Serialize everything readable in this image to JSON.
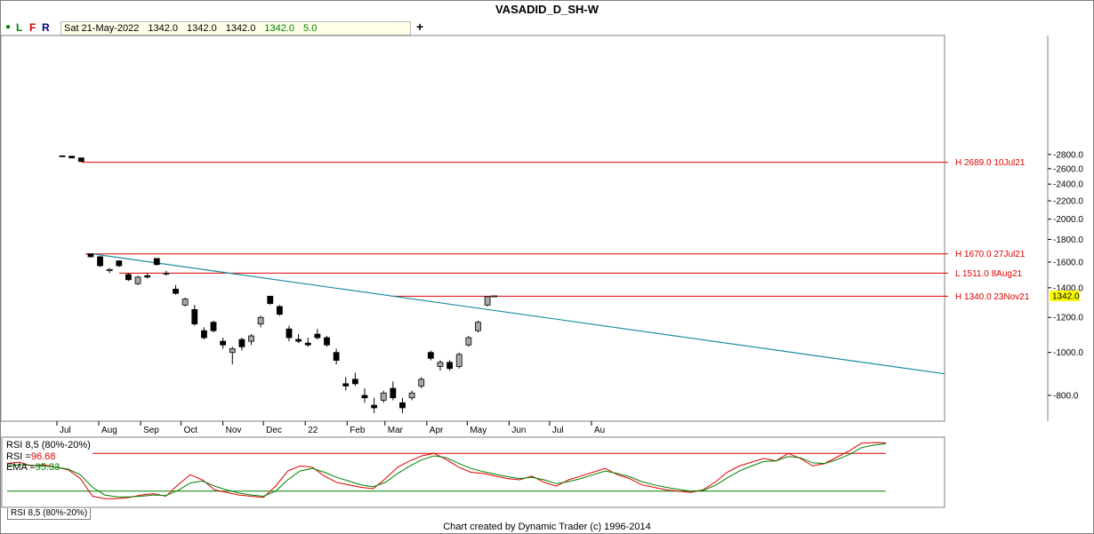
{
  "window": {
    "title": "VASADID_D_SH-W"
  },
  "toolbar": {
    "dot_color": "#008000",
    "letters": [
      {
        "label": "L",
        "color": "#008000"
      },
      {
        "label": "F",
        "color": "#cc0000"
      },
      {
        "label": "R",
        "color": "#000080"
      }
    ],
    "date": "Sat 21-May-2022",
    "open": "1342.0",
    "high": "1342.0",
    "low": "1342.0",
    "close": "1342.0",
    "change": "5.0",
    "add_label": "+"
  },
  "footer": {
    "credit": "Chart created by Dynamic Trader  (c)  1996-2014"
  },
  "colors": {
    "hline": "#e00000",
    "trend": "#1b8ea0",
    "rsi": "#e00000",
    "ema": "#008000",
    "bull": "#a8a8a8",
    "bear": "#000000",
    "last": "#ffff00"
  },
  "chart_data": [
    {
      "type": "candlestick",
      "title": "VASADID_D_SH-W",
      "scale": "log",
      "ylim": [
        680,
        2900
      ],
      "y_ticks": [
        800,
        1000,
        1200,
        1400,
        1600,
        1800,
        2000,
        2200,
        2400,
        2600,
        2800
      ],
      "x_ticks": [
        "Jul",
        "Aug",
        "Sep",
        "Oct",
        "Nov",
        "Dec",
        "22",
        "Feb",
        "Mar",
        "Apr",
        "May",
        "Jun",
        "Jul",
        "Au"
      ],
      "horizontal_lines": [
        {
          "label": "H 2689.0 10Jul21",
          "value": 2689
        },
        {
          "label": "H 1670.0 27Jul21",
          "value": 1670
        },
        {
          "label": "L 1511.0 8Aug21",
          "value": 1511
        },
        {
          "label": "H 1340.0 23Nov21",
          "value": 1340
        }
      ],
      "last_price": "1342.0",
      "trendline": {
        "from": [
          "27-Jul-2021",
          1670
        ],
        "to": [
          "Aug-2022",
          895
        ]
      },
      "ohlc": [
        [
          "2021-07-05",
          2780,
          2785,
          2770,
          2775
        ],
        [
          "2021-07-12",
          2775,
          2778,
          2745,
          2750
        ],
        [
          "2021-07-19",
          2750,
          2752,
          2690,
          2700
        ],
        [
          "2021-07-26",
          1670,
          1670,
          1640,
          1645
        ],
        [
          "2021-08-02",
          1645,
          1650,
          1560,
          1570
        ],
        [
          "2021-08-09",
          1530,
          1550,
          1511,
          1540
        ],
        [
          "2021-08-16",
          1610,
          1615,
          1560,
          1570
        ],
        [
          "2021-08-23",
          1500,
          1510,
          1450,
          1460
        ],
        [
          "2021-08-30",
          1430,
          1490,
          1420,
          1480
        ],
        [
          "2021-09-06",
          1490,
          1510,
          1470,
          1480
        ],
        [
          "2021-09-13",
          1630,
          1635,
          1570,
          1580
        ],
        [
          "2021-09-20",
          1510,
          1530,
          1490,
          1510
        ],
        [
          "2021-09-27",
          1390,
          1420,
          1350,
          1360
        ],
        [
          "2021-10-04",
          1280,
          1330,
          1270,
          1320
        ],
        [
          "2021-10-11",
          1250,
          1280,
          1150,
          1160
        ],
        [
          "2021-10-18",
          1120,
          1140,
          1070,
          1080
        ],
        [
          "2021-10-25",
          1170,
          1180,
          1110,
          1120
        ],
        [
          "2021-11-01",
          1060,
          1080,
          1020,
          1040
        ],
        [
          "2021-11-08",
          1000,
          1030,
          940,
          1020
        ],
        [
          "2021-11-15",
          1070,
          1080,
          1010,
          1030
        ],
        [
          "2021-11-22",
          1060,
          1100,
          1040,
          1090
        ],
        [
          "2021-11-29",
          1160,
          1210,
          1140,
          1200
        ],
        [
          "2021-12-06",
          1340,
          1340,
          1280,
          1290
        ],
        [
          "2021-12-13",
          1270,
          1280,
          1210,
          1220
        ],
        [
          "2021-12-20",
          1130,
          1150,
          1060,
          1080
        ],
        [
          "2021-12-27",
          1070,
          1100,
          1050,
          1060
        ],
        [
          "2022-01-03",
          1050,
          1080,
          1030,
          1040
        ],
        [
          "2022-01-10",
          1100,
          1130,
          1070,
          1080
        ],
        [
          "2022-01-17",
          1080,
          1090,
          1030,
          1040
        ],
        [
          "2022-01-24",
          1000,
          1020,
          940,
          960
        ],
        [
          "2022-01-31",
          850,
          880,
          820,
          840
        ],
        [
          "2022-02-07",
          870,
          900,
          840,
          850
        ],
        [
          "2022-02-14",
          800,
          830,
          770,
          790
        ],
        [
          "2022-02-21",
          760,
          790,
          730,
          750
        ],
        [
          "2022-02-28",
          780,
          820,
          770,
          810
        ],
        [
          "2022-03-07",
          830,
          860,
          780,
          790
        ],
        [
          "2022-03-14",
          770,
          790,
          730,
          750
        ],
        [
          "2022-03-21",
          790,
          820,
          780,
          810
        ],
        [
          "2022-03-28",
          840,
          880,
          830,
          870
        ],
        [
          "2022-04-04",
          1000,
          1010,
          960,
          970
        ],
        [
          "2022-04-11",
          930,
          960,
          910,
          950
        ],
        [
          "2022-04-18",
          950,
          960,
          910,
          920
        ],
        [
          "2022-04-25",
          930,
          1000,
          920,
          990
        ],
        [
          "2022-05-02",
          1040,
          1090,
          1030,
          1080
        ],
        [
          "2022-05-09",
          1120,
          1180,
          1110,
          1170
        ],
        [
          "2022-05-16",
          1280,
          1340,
          1270,
          1337
        ],
        [
          "2022-05-21",
          1342,
          1342,
          1342,
          1342
        ]
      ]
    },
    {
      "type": "line",
      "title": "RSI 8,5 (80%-20%)",
      "ylim": [
        0,
        100
      ],
      "reference_levels": [
        80,
        20
      ],
      "series": [
        {
          "name": "RSI",
          "color": "#e00000",
          "last": 96.68,
          "values": [
            64,
            66,
            60,
            62,
            58,
            54,
            40,
            12,
            8,
            8,
            10,
            14,
            16,
            12,
            30,
            46,
            38,
            22,
            18,
            14,
            12,
            10,
            28,
            52,
            60,
            58,
            44,
            34,
            30,
            26,
            24,
            40,
            58,
            68,
            76,
            80,
            70,
            58,
            50,
            48,
            44,
            40,
            38,
            44,
            34,
            28,
            38,
            44,
            50,
            56,
            46,
            40,
            30,
            26,
            22,
            20,
            18,
            22,
            34,
            50,
            60,
            66,
            72,
            68,
            80,
            72,
            60,
            64,
            74,
            84,
            96,
            97,
            96.68
          ]
        },
        {
          "name": "EMA",
          "color": "#008000",
          "last": 95.33,
          "values": [
            60,
            62,
            61,
            60,
            58,
            55,
            46,
            26,
            14,
            11,
            11,
            12,
            14,
            13,
            21,
            33,
            36,
            28,
            22,
            17,
            14,
            12,
            20,
            38,
            52,
            56,
            50,
            42,
            36,
            30,
            27,
            34,
            48,
            60,
            70,
            76,
            73,
            64,
            56,
            51,
            47,
            43,
            40,
            42,
            38,
            32,
            35,
            40,
            46,
            52,
            48,
            43,
            35,
            30,
            26,
            23,
            20,
            21,
            29,
            41,
            52,
            60,
            67,
            68,
            75,
            73,
            65,
            64,
            70,
            78,
            89,
            93,
            95.33
          ]
        }
      ]
    }
  ],
  "rsi_legend": {
    "title": "RSI 8,5 (80%-20%)",
    "rsi_label": "RSI =",
    "rsi_value": "96.68",
    "ema_label": "EMA =",
    "ema_value": "95.33"
  },
  "panel_tab": "RSI 8,5 (80%-20%)"
}
